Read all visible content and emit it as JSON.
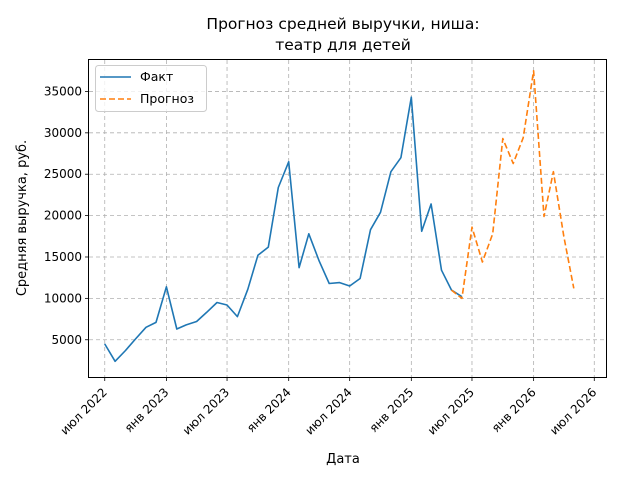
{
  "chart_data": {
    "type": "line",
    "title_line1": "Прогноз средней выручки, ниша:",
    "title_line2": "театр для детей",
    "xlabel": "Дата",
    "ylabel": "Средняя выручка, руб.",
    "x_tick_labels": [
      "июл 2022",
      "янв 2023",
      "июл 2023",
      "янв 2024",
      "июл 2024",
      "янв 2025",
      "июл 2025",
      "янв 2026",
      "июл 2026"
    ],
    "y_ticks": [
      5000,
      10000,
      15000,
      20000,
      25000,
      30000,
      35000
    ],
    "y_tick_labels": [
      "5000",
      "10000",
      "15000",
      "20000",
      "25000",
      "30000",
      "35000"
    ],
    "xlim": [
      "2022-05-15",
      "2026-08-05"
    ],
    "ylim": [
      500,
      38800
    ],
    "grid": true,
    "legend_position": "top-left",
    "series": [
      {
        "name": "Факт",
        "color": "#1f77b4",
        "style": "solid",
        "x": [
          "2022-07-01",
          "2022-08-01",
          "2022-09-01",
          "2022-10-01",
          "2022-11-01",
          "2022-12-01",
          "2023-01-01",
          "2023-02-01",
          "2023-03-01",
          "2023-04-01",
          "2023-05-01",
          "2023-06-01",
          "2023-07-01",
          "2023-08-01",
          "2023-09-01",
          "2023-10-01",
          "2023-11-01",
          "2023-12-01",
          "2024-01-01",
          "2024-02-01",
          "2024-03-01",
          "2024-04-01",
          "2024-05-01",
          "2024-06-01",
          "2024-07-01",
          "2024-08-01",
          "2024-09-01",
          "2024-10-01",
          "2024-11-01",
          "2024-12-01",
          "2025-01-01",
          "2025-02-01",
          "2025-03-01",
          "2025-04-01",
          "2025-05-01",
          "2025-06-01"
        ],
        "y": [
          4500,
          2400,
          3700,
          5100,
          6500,
          7100,
          11400,
          6300,
          6800,
          7200,
          8300,
          9500,
          9200,
          7800,
          11100,
          15200,
          16200,
          23400,
          26500,
          13700,
          17800,
          14500,
          11800,
          11900,
          11500,
          12400,
          18300,
          20400,
          25300,
          27000,
          34300,
          18100,
          21400,
          13400,
          11000,
          10200
        ]
      },
      {
        "name": "Прогноз",
        "color": "#ff7f0e",
        "style": "dashed",
        "x": [
          "2025-05-01",
          "2025-06-01",
          "2025-07-01",
          "2025-08-01",
          "2025-09-01",
          "2025-10-01",
          "2025-11-01",
          "2025-12-01",
          "2026-01-01",
          "2026-02-01",
          "2026-03-01",
          "2026-04-01",
          "2026-05-01",
          "2026-06-01"
        ],
        "y": [
          11000,
          10000,
          18600,
          14400,
          17800,
          29300,
          26300,
          29400,
          37500,
          19900,
          25300,
          17500,
          11200,
          null
        ]
      }
    ]
  }
}
